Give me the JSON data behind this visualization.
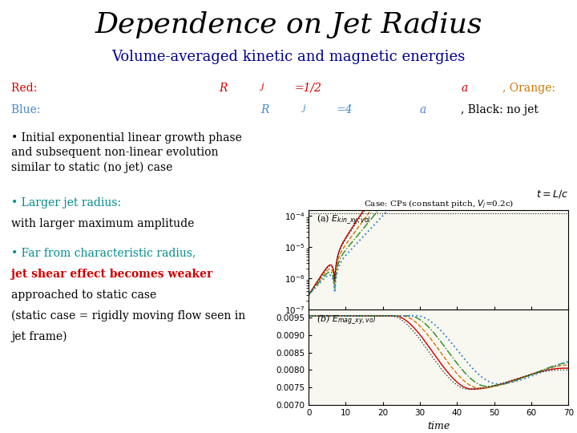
{
  "title": "Dependence on Jet Radius",
  "subtitle": "Volume-averaged kinetic and magnetic energies",
  "title_color": "#000000",
  "subtitle_color": "#00008B",
  "title_fontsize": 26,
  "subtitle_fontsize": 13,
  "colors": {
    "red": "#CC0000",
    "orange": "#CC7700",
    "green": "#228B22",
    "blue": "#4488CC",
    "black": "#000000",
    "cyan": "#008B8B"
  },
  "background": "#FFFFFF",
  "xlabel": "time"
}
